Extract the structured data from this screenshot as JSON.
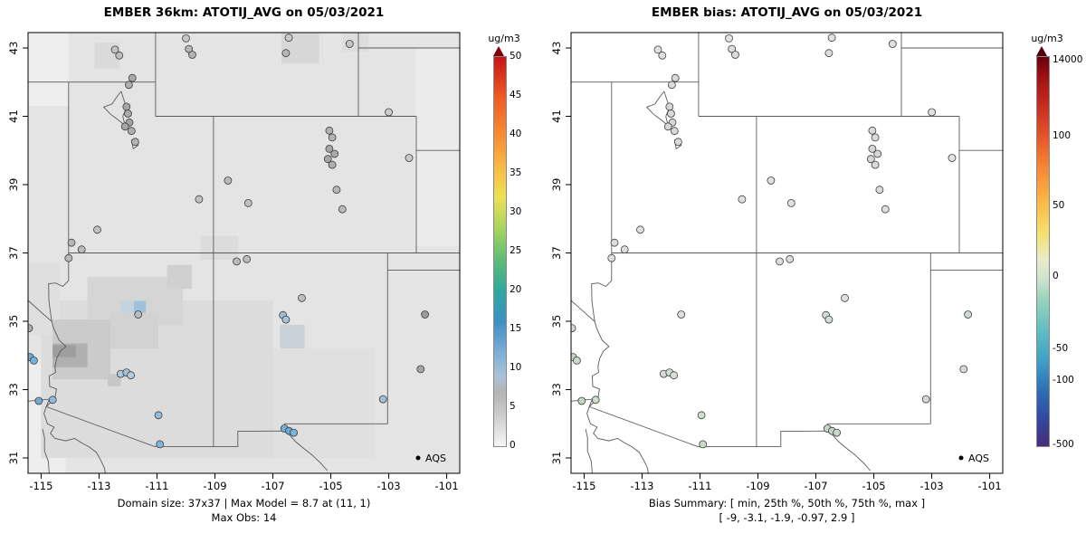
{
  "geo": {
    "lon_min": -115.45,
    "lon_max": -100.55,
    "lat_min": 30.55,
    "lat_max": 43.45,
    "boundaries": [
      [
        [
          -114.05,
          42.0
        ],
        [
          -114.05,
          36.19
        ],
        [
          -114.25,
          36.02
        ],
        [
          -114.5,
          36.12
        ],
        [
          -114.74,
          36.1
        ],
        [
          -114.73,
          35.6
        ],
        [
          -114.66,
          35.15
        ],
        [
          -114.63,
          34.98
        ],
        [
          -114.57,
          34.8
        ],
        [
          -114.38,
          34.45
        ],
        [
          -114.14,
          34.26
        ],
        [
          -114.33,
          34.13
        ],
        [
          -114.46,
          33.92
        ],
        [
          -114.52,
          33.68
        ],
        [
          -114.5,
          33.5
        ],
        [
          -114.72,
          33.4
        ],
        [
          -114.7,
          33.09
        ],
        [
          -114.47,
          33.02
        ],
        [
          -114.52,
          32.76
        ],
        [
          -114.82,
          32.5
        ]
      ],
      [
        [
          -115.45,
          35.61
        ],
        [
          -114.63,
          34.99
        ]
      ],
      [
        [
          -115.45,
          32.66
        ],
        [
          -114.72,
          32.72
        ],
        [
          -114.82,
          32.5
        ],
        [
          -111.07,
          31.33
        ],
        [
          -108.21,
          31.33
        ],
        [
          -108.21,
          31.78
        ],
        [
          -106.53,
          31.79
        ],
        [
          -106.37,
          31.62
        ],
        [
          -106.22,
          31.48
        ],
        [
          -105.95,
          31.29
        ],
        [
          -105.65,
          31.09
        ],
        [
          -105.35,
          30.85
        ],
        [
          -105.12,
          30.63
        ]
      ],
      [
        [
          -114.82,
          32.5
        ],
        [
          -114.9,
          32.3
        ],
        [
          -114.78,
          32.0
        ],
        [
          -114.55,
          31.9
        ],
        [
          -114.68,
          31.72
        ],
        [
          -114.52,
          31.57
        ],
        [
          -114.15,
          31.5
        ],
        [
          -113.84,
          31.57
        ],
        [
          -113.62,
          31.45
        ],
        [
          -113.35,
          31.33
        ],
        [
          -113.1,
          31.17
        ],
        [
          -112.95,
          30.95
        ],
        [
          -112.82,
          30.72
        ],
        [
          -112.78,
          30.55
        ]
      ],
      [
        [
          -114.95,
          31.85
        ],
        [
          -114.88,
          31.6
        ],
        [
          -114.88,
          31.2
        ],
        [
          -114.75,
          30.9
        ],
        [
          -114.72,
          30.55
        ]
      ],
      [
        [
          -115.45,
          42.0
        ],
        [
          -111.05,
          42.0
        ]
      ],
      [
        [
          -111.05,
          43.45
        ],
        [
          -111.05,
          41.0
        ]
      ],
      [
        [
          -111.05,
          41.0
        ],
        [
          -102.05,
          41.0
        ]
      ],
      [
        [
          -104.05,
          43.45
        ],
        [
          -104.05,
          41.0
        ]
      ],
      [
        [
          -109.05,
          41.0
        ],
        [
          -109.05,
          31.33
        ]
      ],
      [
        [
          -114.05,
          37.0
        ],
        [
          -100.55,
          37.0
        ]
      ],
      [
        [
          -102.05,
          41.0
        ],
        [
          -102.05,
          37.0
        ]
      ],
      [
        [
          -103.04,
          37.0
        ],
        [
          -103.04,
          32.0
        ]
      ],
      [
        [
          -103.04,
          36.5
        ],
        [
          -100.55,
          36.5
        ]
      ],
      [
        [
          -106.62,
          32.0
        ],
        [
          -103.04,
          32.0
        ]
      ],
      [
        [
          -104.05,
          43.0
        ],
        [
          -100.55,
          43.0
        ]
      ],
      [
        [
          -102.05,
          40.0
        ],
        [
          -100.55,
          40.0
        ]
      ],
      [
        [
          -112.24,
          41.73
        ],
        [
          -112.4,
          41.55
        ],
        [
          -112.55,
          41.36
        ],
        [
          -112.84,
          41.27
        ],
        [
          -112.6,
          41.06
        ],
        [
          -112.32,
          40.88
        ],
        [
          -112.1,
          40.73
        ],
        [
          -112.18,
          41.0
        ],
        [
          -112.05,
          41.25
        ],
        [
          -112.24,
          41.73
        ]
      ],
      [
        [
          -111.72,
          40.36
        ],
        [
          -111.88,
          40.3
        ],
        [
          -111.82,
          40.05
        ],
        [
          -111.65,
          40.15
        ],
        [
          -111.72,
          40.36
        ]
      ]
    ],
    "sites": [
      {
        "lon": -112.45,
        "lat": 42.95,
        "c": [
          "#C2C2C2",
          "#E0E0E0"
        ]
      },
      {
        "lon": -112.3,
        "lat": 42.78,
        "c": [
          "#BDBDBD",
          "#DFDFDF"
        ]
      },
      {
        "lon": -110.0,
        "lat": 43.28,
        "c": [
          "#C6C6C6",
          "#E1E1E1"
        ]
      },
      {
        "lon": -109.9,
        "lat": 42.97,
        "c": [
          "#B6B6B6",
          "#DDDDDD"
        ]
      },
      {
        "lon": -109.78,
        "lat": 42.8,
        "c": [
          "#B2B2B2",
          "#DCDCDC"
        ]
      },
      {
        "lon": -106.45,
        "lat": 43.3,
        "c": [
          "#CACACA",
          "#E2E2E2"
        ]
      },
      {
        "lon": -106.55,
        "lat": 42.85,
        "c": [
          "#B6B6B6",
          "#DEDEDE"
        ]
      },
      {
        "lon": -104.35,
        "lat": 43.12,
        "c": [
          "#C6C6C6",
          "#E0E0E0"
        ]
      },
      {
        "lon": -103.0,
        "lat": 41.12,
        "c": [
          "#CDCDCD",
          "#E2E2E2"
        ]
      },
      {
        "lon": -111.85,
        "lat": 42.12,
        "c": [
          "#A9A9A9",
          "#D8D8D8"
        ]
      },
      {
        "lon": -111.97,
        "lat": 41.92,
        "c": [
          "#AEAEAE",
          "#DADADA"
        ]
      },
      {
        "lon": -112.05,
        "lat": 41.28,
        "c": [
          "#A6A6A6",
          "#D6D6D6"
        ]
      },
      {
        "lon": -112.0,
        "lat": 41.08,
        "c": [
          "#ABABAB",
          "#D8D8D8"
        ]
      },
      {
        "lon": -111.95,
        "lat": 40.82,
        "c": [
          "#A3A3A3",
          "#D5D5D5"
        ]
      },
      {
        "lon": -112.1,
        "lat": 40.7,
        "c": [
          "#A8A8A8",
          "#D6D6D6"
        ]
      },
      {
        "lon": -111.88,
        "lat": 40.57,
        "c": [
          "#AEAEAE",
          "#D8D8D8"
        ]
      },
      {
        "lon": -111.75,
        "lat": 40.25,
        "c": [
          "#B3B3B3",
          "#DADADA"
        ]
      },
      {
        "lon": -114.05,
        "lat": 36.85,
        "c": [
          "#B9B9B9",
          "#DCDCDC"
        ]
      },
      {
        "lon": -113.95,
        "lat": 37.3,
        "c": [
          "#B6B6B6",
          "#DBDBDB"
        ]
      },
      {
        "lon": -113.6,
        "lat": 37.1,
        "c": [
          "#BBBBBB",
          "#DDDDDD"
        ]
      },
      {
        "lon": -113.06,
        "lat": 37.68,
        "c": [
          "#C0C0C0",
          "#DFDFDF"
        ]
      },
      {
        "lon": -109.55,
        "lat": 38.57,
        "c": [
          "#C2C2C2",
          "#E0E0E0"
        ]
      },
      {
        "lon": -108.55,
        "lat": 39.12,
        "c": [
          "#BBBBBB",
          "#DEDEDE"
        ]
      },
      {
        "lon": -107.85,
        "lat": 38.46,
        "c": [
          "#C0C0C0",
          "#E0E0E0"
        ]
      },
      {
        "lon": -105.05,
        "lat": 40.58,
        "c": [
          "#B0B0B0",
          "#DADADA"
        ]
      },
      {
        "lon": -104.95,
        "lat": 40.38,
        "c": [
          "#B3B3B3",
          "#DBDBDB"
        ]
      },
      {
        "lon": -105.05,
        "lat": 40.05,
        "c": [
          "#A6A6A6",
          "#D6D6D6"
        ]
      },
      {
        "lon": -104.87,
        "lat": 39.9,
        "c": [
          "#AAAAAA",
          "#D8D8D8"
        ]
      },
      {
        "lon": -105.1,
        "lat": 39.75,
        "c": [
          "#A6A6A6",
          "#D6D6D6"
        ]
      },
      {
        "lon": -104.95,
        "lat": 39.58,
        "c": [
          "#AEAEAE",
          "#D9D9D9"
        ]
      },
      {
        "lon": -104.8,
        "lat": 38.85,
        "c": [
          "#B6B6B6",
          "#DCDCDC"
        ]
      },
      {
        "lon": -104.6,
        "lat": 38.28,
        "c": [
          "#BBBBBB",
          "#DDDDDD"
        ]
      },
      {
        "lon": -102.3,
        "lat": 39.78,
        "c": [
          "#CACACA",
          "#E2E2E2"
        ]
      },
      {
        "lon": -108.25,
        "lat": 36.75,
        "c": [
          "#B9B9B9",
          "#DCDCDC"
        ]
      },
      {
        "lon": -107.9,
        "lat": 36.82,
        "c": [
          "#BDBDBD",
          "#DDDDDD"
        ]
      },
      {
        "lon": -106.65,
        "lat": 35.18,
        "c": [
          "#9FBCD8",
          "#D3DDD3"
        ]
      },
      {
        "lon": -106.55,
        "lat": 35.05,
        "c": [
          "#A8C2DA",
          "#D5DED5"
        ]
      },
      {
        "lon": -106.0,
        "lat": 35.68,
        "c": [
          "#BFBFBF",
          "#DFDFDF"
        ]
      },
      {
        "lon": -106.6,
        "lat": 31.86,
        "c": [
          "#74AFD8",
          "#C6D8C8"
        ]
      },
      {
        "lon": -106.44,
        "lat": 31.79,
        "c": [
          "#68A8D6",
          "#C2D6C5"
        ]
      },
      {
        "lon": -106.28,
        "lat": 31.74,
        "c": [
          "#7FB5DA",
          "#C9DACA"
        ]
      },
      {
        "lon": -112.25,
        "lat": 33.46,
        "c": [
          "#AFC8DC",
          "#D5DDD5"
        ]
      },
      {
        "lon": -112.05,
        "lat": 33.5,
        "c": [
          "#A5C2DA",
          "#D3DDD3"
        ]
      },
      {
        "lon": -111.9,
        "lat": 33.42,
        "c": [
          "#B4CBDE",
          "#D7DFD7"
        ]
      },
      {
        "lon": -111.65,
        "lat": 35.2,
        "c": [
          "#BBBBBB",
          "#DDDDDD"
        ]
      },
      {
        "lon": -110.95,
        "lat": 32.25,
        "c": [
          "#8FBCDC",
          "#CEDCCE"
        ]
      },
      {
        "lon": -110.9,
        "lat": 31.4,
        "c": [
          "#7FB5DA",
          "#C9D9CA"
        ]
      },
      {
        "lon": -114.6,
        "lat": 32.7,
        "c": [
          "#8FBCDC",
          "#CEDCCE"
        ]
      },
      {
        "lon": -115.08,
        "lat": 32.67,
        "c": [
          "#6FACD6",
          "#C4D7C6"
        ]
      },
      {
        "lon": -115.42,
        "lat": 34.8,
        "c": [
          "#AEAEAE",
          "#D9D9D9"
        ]
      },
      {
        "lon": -115.38,
        "lat": 33.95,
        "c": [
          "#6FACD6",
          "#C5D8C7"
        ]
      },
      {
        "lon": -115.25,
        "lat": 33.85,
        "c": [
          "#78B1D8",
          "#C8D9C9"
        ]
      },
      {
        "lon": -101.75,
        "lat": 35.2,
        "c": [
          "#9C9C9C",
          "#D1D9D1"
        ]
      },
      {
        "lon": -101.9,
        "lat": 33.6,
        "c": [
          "#A6A6A6",
          "#D5DAD5"
        ]
      },
      {
        "lon": -103.2,
        "lat": 32.72,
        "c": [
          "#9FC0DA",
          "#D2DBD3"
        ]
      }
    ]
  },
  "chart_data": [
    {
      "type": "heatmap",
      "title": "EMBER 36km: ATOTIJ_AVG on 05/03/2021",
      "axes": {
        "xticks": [
          -115,
          -113,
          -111,
          -109,
          -107,
          -105,
          -103,
          -101
        ],
        "yticks": [
          31,
          33,
          35,
          37,
          39,
          41,
          43
        ],
        "xlim": [
          -115.45,
          -100.55
        ],
        "ylim": [
          30.55,
          43.45
        ]
      },
      "base_fill": "#E4E4E4",
      "grid_cells": [
        [
          -115.45,
          30.55,
          1.3,
          3.3,
          "#EDEDED"
        ],
        [
          -115.45,
          41.3,
          1.4,
          2.15,
          "#EEEEEE"
        ],
        [
          -115.0,
          31.0,
          8.0,
          4.6,
          "#DCDCDC"
        ],
        [
          -107.0,
          31.0,
          3.5,
          3.2,
          "#E0E0E0"
        ],
        [
          -113.4,
          34.9,
          3.3,
          1.4,
          "#D5D5D5"
        ],
        [
          -115.45,
          34.6,
          1.1,
          2.1,
          "#DFDFDF"
        ],
        [
          -114.6,
          33.3,
          2.0,
          1.75,
          "#CBCBCB"
        ],
        [
          -114.6,
          33.65,
          1.2,
          0.7,
          "#B0B0B0"
        ],
        [
          -114.6,
          33.95,
          0.8,
          0.35,
          "#9E9E9E"
        ],
        [
          -112.6,
          34.2,
          1.65,
          1.05,
          "#D2D2D2"
        ],
        [
          -111.8,
          35.25,
          0.42,
          0.35,
          "#9FC2DC"
        ],
        [
          -112.25,
          35.25,
          0.45,
          0.35,
          "#C5D3DF"
        ],
        [
          -106.75,
          34.2,
          0.85,
          0.7,
          "#C9D1D9"
        ],
        [
          -110.65,
          35.95,
          0.85,
          0.7,
          "#D0D0D0"
        ],
        [
          -109.5,
          36.8,
          1.3,
          0.7,
          "#DCDCDC"
        ],
        [
          -113.15,
          42.4,
          0.85,
          0.75,
          "#DADADA"
        ],
        [
          -106.7,
          42.55,
          1.3,
          0.9,
          "#D7D7D7"
        ],
        [
          -104.6,
          42.9,
          0.9,
          0.55,
          "#DDDDDD"
        ],
        [
          -102.1,
          37.2,
          1.55,
          5.8,
          "#EBEBEB"
        ],
        [
          -112.7,
          33.1,
          0.45,
          0.35,
          "#C6C6C6"
        ]
      ],
      "legend_label": "AQS",
      "colorbar": {
        "label": "ug/m3",
        "cap": "#7E0308",
        "stops": [
          [
            0,
            "#F5F5F5"
          ],
          [
            8,
            "#CCCCCC"
          ],
          [
            14,
            "#B4B4B4"
          ],
          [
            18,
            "#A9C2D8"
          ],
          [
            24,
            "#7FAED6"
          ],
          [
            32,
            "#3E8FC4"
          ],
          [
            40,
            "#2EA89E"
          ],
          [
            48,
            "#5FBC74"
          ],
          [
            56,
            "#A6D45F"
          ],
          [
            64,
            "#EFE054"
          ],
          [
            70,
            "#F8C348"
          ],
          [
            80,
            "#F78C32"
          ],
          [
            90,
            "#ED5A24"
          ],
          [
            100,
            "#C81418"
          ]
        ],
        "ticks": [
          {
            "label": "0",
            "pos": 0.0
          },
          {
            "label": "5",
            "pos": 0.1
          },
          {
            "label": "10",
            "pos": 0.2
          },
          {
            "label": "15",
            "pos": 0.3
          },
          {
            "label": "20",
            "pos": 0.4
          },
          {
            "label": "25",
            "pos": 0.5
          },
          {
            "label": "30",
            "pos": 0.6
          },
          {
            "label": "35",
            "pos": 0.7
          },
          {
            "label": "40",
            "pos": 0.8
          },
          {
            "label": "45",
            "pos": 0.9
          },
          {
            "label": "50",
            "pos": 1.0
          }
        ]
      },
      "captions": [
        "Domain size: 37x37 | Max Model = 8.7 at (11, 1)",
        "Max Obs: 14"
      ]
    },
    {
      "type": "scatter",
      "title": "EMBER bias: ATOTIJ_AVG on 05/03/2021",
      "axes": {
        "xticks": [
          -115,
          -113,
          -111,
          -109,
          -107,
          -105,
          -103,
          -101
        ],
        "yticks": [
          31,
          33,
          35,
          37,
          39,
          41,
          43
        ],
        "xlim": [
          -115.45,
          -100.55
        ],
        "ylim": [
          30.55,
          43.45
        ]
      },
      "base_fill": "#FFFFFF",
      "grid_cells": [],
      "legend_label": "AQS",
      "colorbar": {
        "label": "ug/m3",
        "cap": "#50000A",
        "stops": [
          [
            0,
            "#472D7B"
          ],
          [
            7,
            "#31489E"
          ],
          [
            14,
            "#2E6DB4"
          ],
          [
            22,
            "#3FA0C8"
          ],
          [
            30,
            "#62BEC4"
          ],
          [
            38,
            "#9CD4BC"
          ],
          [
            43,
            "#CFE3CE"
          ],
          [
            48,
            "#E9ECC9"
          ],
          [
            55,
            "#F6DF6E"
          ],
          [
            63,
            "#FBB844"
          ],
          [
            72,
            "#F58434"
          ],
          [
            80,
            "#E2532A"
          ],
          [
            88,
            "#C42A20"
          ],
          [
            95,
            "#9E1015"
          ],
          [
            100,
            "#67000D"
          ]
        ],
        "ticks": [
          {
            "label": "14000",
            "pos": 0.99
          },
          {
            "label": "100",
            "pos": 0.795
          },
          {
            "label": "50",
            "pos": 0.616
          },
          {
            "label": "0",
            "pos": 0.435
          },
          {
            "label": "-50",
            "pos": 0.249
          },
          {
            "label": "-100",
            "pos": 0.167
          },
          {
            "label": "-500",
            "pos": 0.002
          }
        ]
      },
      "captions": [
        "Bias Summary: [ min, 25th %, 50th %, 75th %, max ]",
        "[ -9,  -3.1,  -1.9,  -0.97,  2.9 ]"
      ]
    }
  ]
}
